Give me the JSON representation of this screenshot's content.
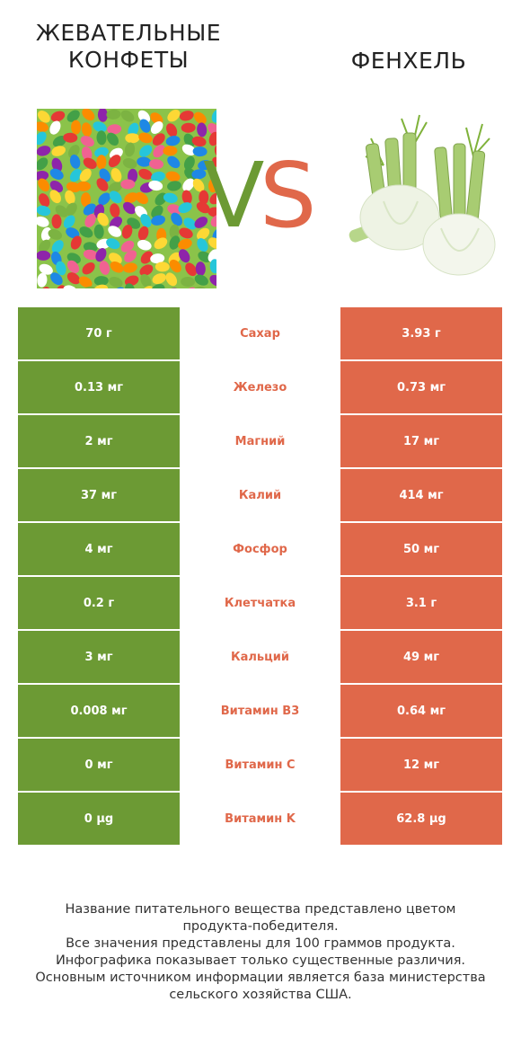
{
  "left_product": {
    "title_line1": "ЖЕВАТЕЛЬНЫЕ",
    "title_line2": "КОНФЕТЫ",
    "color": "#6c9a34"
  },
  "right_product": {
    "title": "ФЕНХЕЛЬ",
    "color": "#e0684a"
  },
  "vs": {
    "v": "V",
    "s": "S"
  },
  "rows": [
    {
      "nutrient": "Сахар",
      "left": "70 г",
      "right": "3.93 г",
      "winner": "right"
    },
    {
      "nutrient": "Железо",
      "left": "0.13 мг",
      "right": "0.73 мг",
      "winner": "right"
    },
    {
      "nutrient": "Магний",
      "left": "2 мг",
      "right": "17 мг",
      "winner": "right"
    },
    {
      "nutrient": "Калий",
      "left": "37 мг",
      "right": "414 мг",
      "winner": "right"
    },
    {
      "nutrient": "Фосфор",
      "left": "4 мг",
      "right": "50 мг",
      "winner": "right"
    },
    {
      "nutrient": "Клетчатка",
      "left": "0.2 г",
      "right": "3.1 г",
      "winner": "right"
    },
    {
      "nutrient": "Кальций",
      "left": "3 мг",
      "right": "49 мг",
      "winner": "right"
    },
    {
      "nutrient": "Витамин B3",
      "left": "0.008 мг",
      "right": "0.64 мг",
      "winner": "right"
    },
    {
      "nutrient": "Витамин C",
      "left": "0 мг",
      "right": "12 мг",
      "winner": "right"
    },
    {
      "nutrient": "Витамин K",
      "left": "0 µg",
      "right": "62.8 µg",
      "winner": "right"
    }
  ],
  "footer": {
    "line1": "Название питательного вещества представлено цветом",
    "line2": "продукта-победителя.",
    "line3": "Все значения представлены для 100 граммов продукта.",
    "line4": "Инфографика показывает только существенные различия.",
    "line5": "Основным источником информации является база министерства",
    "line6": "сельского хозяйства США."
  }
}
